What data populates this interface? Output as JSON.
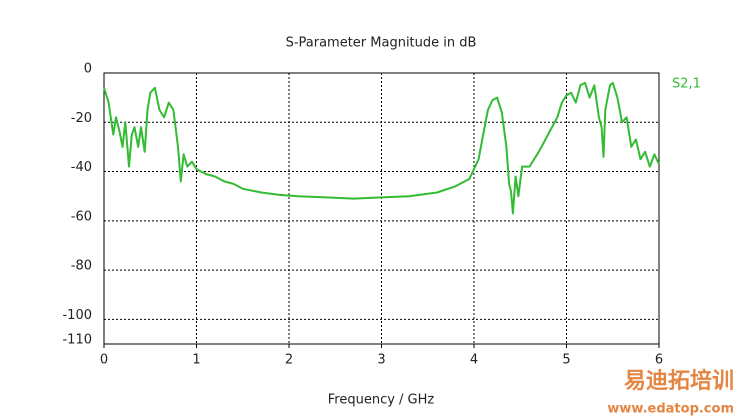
{
  "chart_data": {
    "type": "line",
    "title": "S-Parameter Magnitude in dB",
    "xlabel": "Frequency / GHz",
    "xlim": [
      0,
      6
    ],
    "xticks": [
      0,
      1,
      2,
      3,
      4,
      5,
      6
    ],
    "ylim": [
      -110,
      0
    ],
    "yticks": [
      0,
      -20,
      -40,
      -60,
      -80,
      -100,
      -110
    ],
    "grid": true,
    "legend": "right",
    "series": [
      {
        "name": "S2,1",
        "color": "#33bb33",
        "x": [
          0,
          0.05,
          0.1,
          0.13,
          0.17,
          0.2,
          0.23,
          0.27,
          0.3,
          0.33,
          0.37,
          0.4,
          0.44,
          0.47,
          0.5,
          0.55,
          0.6,
          0.65,
          0.7,
          0.75,
          0.8,
          0.83,
          0.86,
          0.9,
          0.95,
          1.0,
          1.1,
          1.2,
          1.3,
          1.4,
          1.5,
          1.7,
          1.9,
          2.1,
          2.4,
          2.7,
          3.0,
          3.3,
          3.6,
          3.8,
          3.95,
          4.05,
          4.1,
          4.15,
          4.2,
          4.25,
          4.3,
          4.35,
          4.38,
          4.4,
          4.42,
          4.45,
          4.48,
          4.52,
          4.6,
          4.7,
          4.8,
          4.9,
          4.95,
          5.0,
          5.05,
          5.1,
          5.15,
          5.2,
          5.25,
          5.3,
          5.35,
          5.38,
          5.4,
          5.42,
          5.47,
          5.5,
          5.55,
          5.6,
          5.65,
          5.7,
          5.75,
          5.8,
          5.85,
          5.9,
          5.95,
          6.0
        ],
        "values": [
          -6,
          -12,
          -25,
          -18,
          -24,
          -30,
          -20,
          -38,
          -25,
          -22,
          -30,
          -22,
          -32,
          -15,
          -8,
          -6,
          -15,
          -18,
          -12,
          -15,
          -30,
          -44,
          -33,
          -38,
          -36,
          -39,
          -41,
          -42,
          -44,
          -45,
          -47,
          -48.5,
          -49.5,
          -50,
          -50.5,
          -51,
          -50.5,
          -50,
          -48.5,
          -46,
          -43,
          -35,
          -25,
          -15,
          -11,
          -10,
          -16,
          -30,
          -45,
          -48,
          -57,
          -42,
          -50,
          -38,
          -38,
          -32,
          -25,
          -18,
          -12,
          -9,
          -8,
          -12,
          -5,
          -4,
          -10,
          -5,
          -18,
          -22,
          -34,
          -15,
          -5,
          -4,
          -10,
          -20,
          -18,
          -30,
          -27,
          -35,
          -32,
          -38,
          -33,
          -37
        ]
      }
    ]
  },
  "watermark": {
    "brand": "易迪拓培训",
    "url": "www.edatop.com"
  }
}
